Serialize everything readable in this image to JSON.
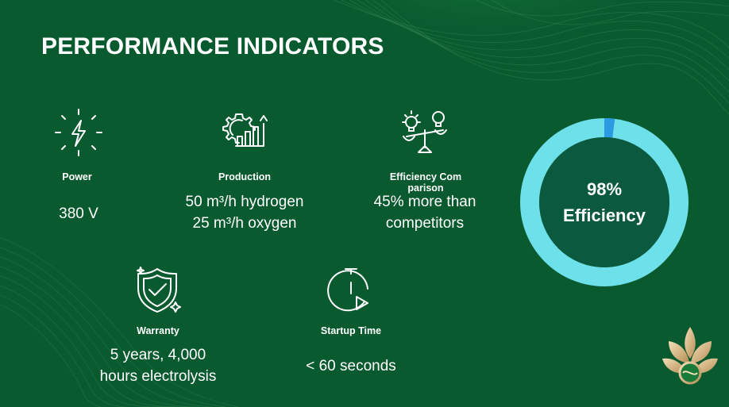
{
  "slide": {
    "title": "PERFORMANCE INDICATORS",
    "colors": {
      "background": "#0a5a30",
      "text": "#ffffff",
      "ring": "#6ee0ea",
      "ring_accent": "#2b9be3",
      "ring_center": "#0b5a3f",
      "logo_gold": "#d8b98a"
    }
  },
  "indicators": [
    {
      "icon": "lightning-bolt-icon",
      "label": "Power",
      "value": "380 V"
    },
    {
      "icon": "gear-growth-chart-icon",
      "label": "Production",
      "value_line1": "50 m³/h hydrogen",
      "value_line2": "25 m³/h oxygen"
    },
    {
      "icon": "lightbulb-scale-icon",
      "label": "Efficiency Comparison",
      "value_line1": "45% more than",
      "value_line2": "competitors"
    },
    {
      "icon": "shield-check-icon",
      "label": "Warranty",
      "value_line1": "5 years, 4,000",
      "value_line2": "hours electrolysis"
    },
    {
      "icon": "stopwatch-play-icon",
      "label": "Startup Time",
      "value": "< 60 seconds"
    }
  ],
  "efficiency_gauge": {
    "percent_value": 98,
    "percent_text": "98%",
    "caption": "Efficiency"
  },
  "brand": {
    "icon": "lotus-logo-icon"
  }
}
